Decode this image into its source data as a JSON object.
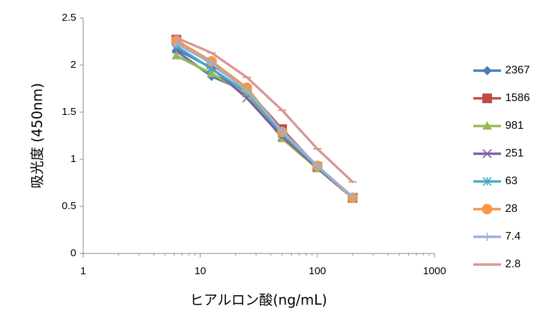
{
  "chart_data": {
    "type": "line",
    "xlabel": "ヒアルロン酸(ng/mL)",
    "ylabel": "吸光度 (450nm)",
    "x_scale": "log",
    "xlim": [
      1,
      1000
    ],
    "ylim": [
      0,
      2.5
    ],
    "x_ticks": [
      "1",
      "10",
      "100",
      "1000"
    ],
    "y_ticks": [
      "0",
      "0.5",
      "1",
      "1.5",
      "2",
      "2.5"
    ],
    "grid": false,
    "legend_position": "right",
    "x": [
      6.25,
      12.5,
      25,
      50,
      100,
      200
    ],
    "series": [
      {
        "name": "2367",
        "color": "#4A7EBB",
        "marker": "diamond",
        "values": [
          2.15,
          1.88,
          1.72,
          1.25,
          0.92,
          0.6
        ]
      },
      {
        "name": "1586",
        "color": "#BE4B48",
        "marker": "square",
        "values": [
          2.27,
          2.01,
          1.74,
          1.32,
          0.92,
          0.59
        ]
      },
      {
        "name": "981",
        "color": "#98B954",
        "marker": "triangle",
        "values": [
          2.1,
          1.91,
          1.7,
          1.22,
          0.9,
          0.59
        ]
      },
      {
        "name": "251",
        "color": "#7D60A0",
        "marker": "x",
        "values": [
          2.17,
          1.97,
          1.65,
          1.24,
          0.91,
          0.59
        ]
      },
      {
        "name": "63",
        "color": "#46AAC5",
        "marker": "asterisk",
        "values": [
          2.2,
          1.96,
          1.71,
          1.27,
          0.92,
          0.6
        ]
      },
      {
        "name": "28",
        "color": "#F79646",
        "marker": "circle",
        "values": [
          2.26,
          2.04,
          1.76,
          1.29,
          0.93,
          0.59
        ]
      },
      {
        "name": "7.4",
        "color": "#95B3D7",
        "marker": "plus",
        "values": [
          2.23,
          2.02,
          1.73,
          1.3,
          0.93,
          0.6
        ]
      },
      {
        "name": "2.8",
        "color": "#D99694",
        "marker": "dash",
        "values": [
          2.29,
          2.13,
          1.87,
          1.52,
          1.11,
          0.76
        ]
      }
    ]
  }
}
